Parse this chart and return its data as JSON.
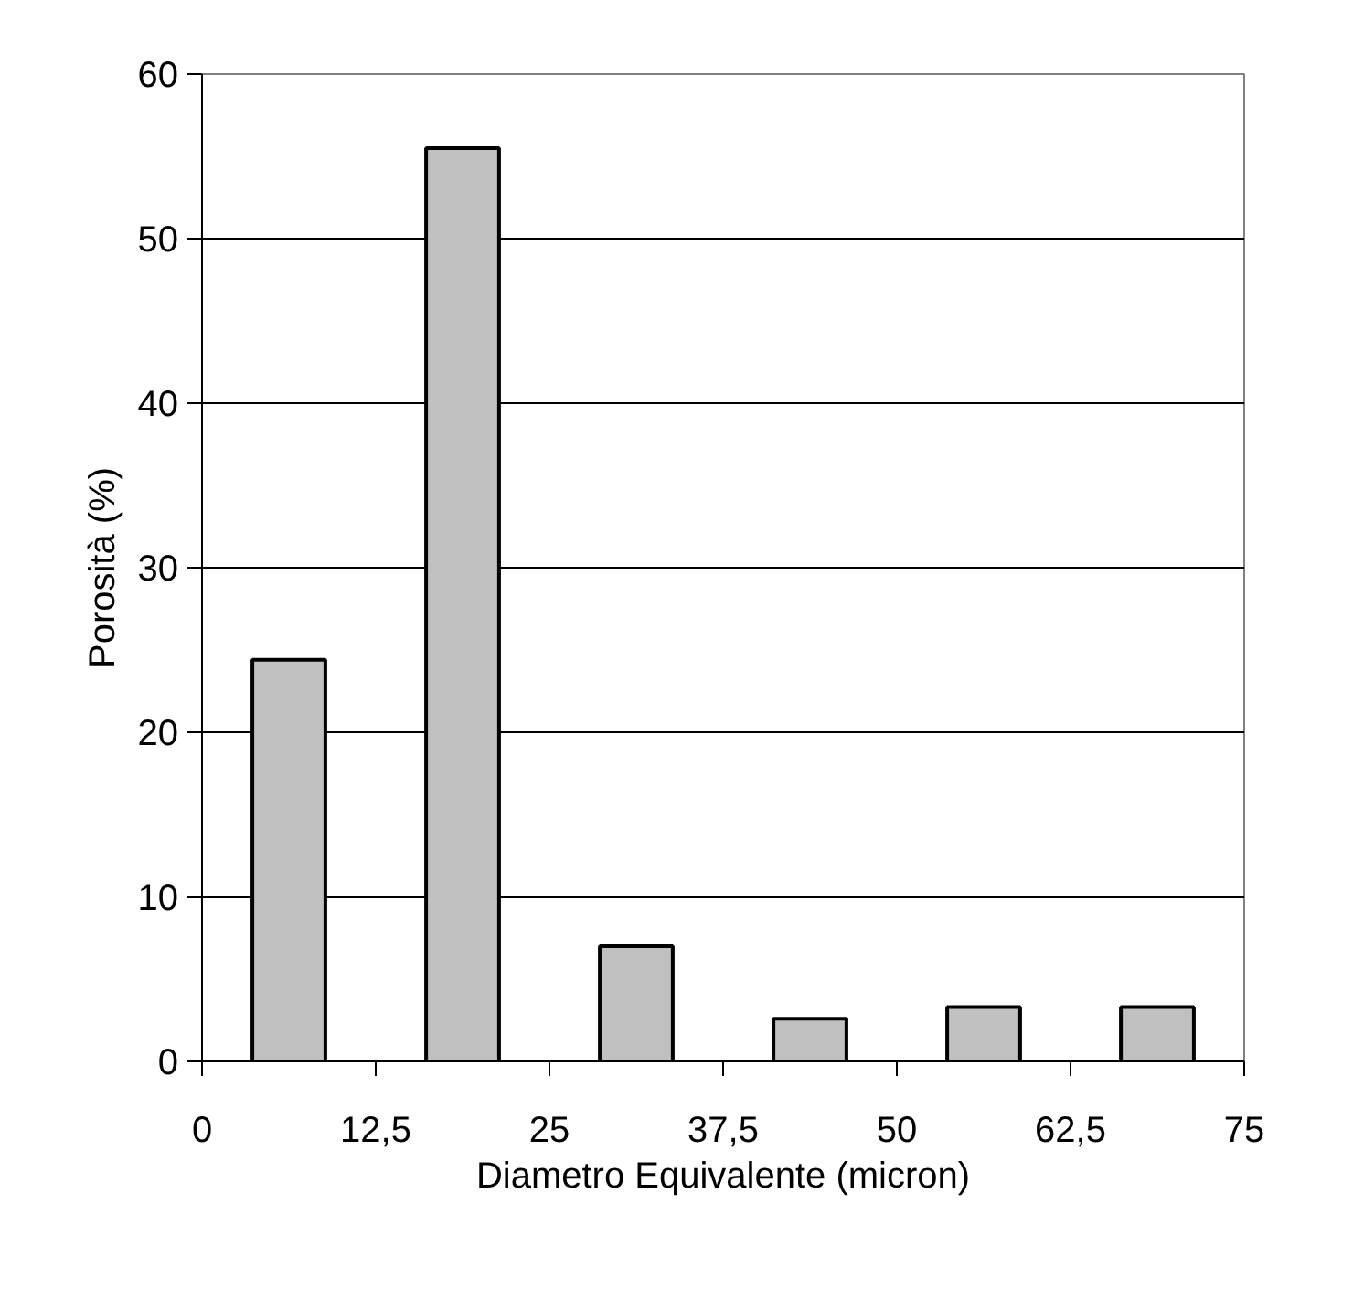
{
  "chart_data": {
    "type": "histogram",
    "xlabel": "Diametro Equivalente (micron)",
    "ylabel": "Porosità (%)",
    "bins": [
      0,
      12.5,
      25,
      37.5,
      50,
      62.5,
      75
    ],
    "values": [
      24.4,
      55.5,
      7.0,
      2.6,
      3.3,
      3.3
    ],
    "color": "#c0c0c0",
    "xlim": [
      0,
      75
    ],
    "ylim": [
      0,
      60
    ],
    "xticks": [
      0,
      {
        "value": 12.5,
        "label": "12,5"
      },
      25,
      {
        "value": 37.5,
        "label": "37,5"
      },
      50,
      {
        "value": 62.5,
        "label": "62,5"
      },
      75
    ],
    "yticks": [
      0,
      10,
      20,
      30,
      40,
      50,
      60
    ],
    "grid": "y"
  }
}
